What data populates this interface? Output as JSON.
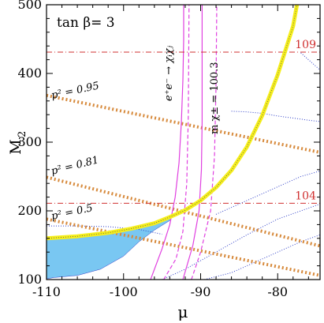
{
  "chart_data": {
    "type": "line",
    "title": "tan β= 3",
    "xlabel": "μ",
    "ylabel": "M",
    "ylabel_sub": "2",
    "xlim": [
      -110,
      -74.5
    ],
    "ylim": [
      100,
      500
    ],
    "x_ticks": [
      -110,
      -100,
      -90,
      -80
    ],
    "y_ticks": [
      100,
      200,
      300,
      400,
      500
    ],
    "x_minor_step": 2,
    "y_minor_step": 20,
    "grid": false,
    "colors": {
      "yellow": "#f5ee1c",
      "blue_fill": "#79c7f2",
      "magenta": "#e040e0",
      "orange": "#d78a3c",
      "red": "#d03030",
      "navy": "#3040c8",
      "axis": "#000000"
    },
    "hlines": [
      {
        "y": 431,
        "label": "109",
        "color": "#d03030"
      },
      {
        "y": 211,
        "label": "104",
        "color": "#d03030"
      }
    ],
    "labels": {
      "p095": "p² = 0.95",
      "p081": "p² = 0.81",
      "p05": "p² = 0.5",
      "eechi": "e⁺e⁻ → χᵢχⱼ",
      "mchi": "m χ± = 100.3"
    },
    "yellow_curve": {
      "x": [
        -110,
        -106,
        -102,
        -99,
        -96,
        -94,
        -92,
        -90,
        -88,
        -86,
        -84,
        -82,
        -80,
        -78,
        -77.5
      ],
      "y": [
        160,
        163,
        168,
        174,
        182,
        191,
        201,
        215,
        234,
        259,
        293,
        339,
        398,
        469,
        500
      ]
    },
    "blue_region": {
      "x": [
        -110,
        -106,
        -102,
        -99,
        -96,
        -94,
        -94,
        -96,
        -98,
        -100,
        -103,
        -106,
        -109,
        -110
      ],
      "y": [
        159,
        162,
        167,
        173,
        180,
        190,
        186,
        172,
        155,
        134,
        115,
        106,
        103,
        101
      ]
    },
    "orange_lines": [
      {
        "name": "p² = 0.95",
        "x": [
          -110,
          -74.5
        ],
        "y": [
          368,
          285
        ]
      },
      {
        "name": "p² = 0.81",
        "x": [
          -110,
          -74.5
        ],
        "y": [
          249,
          149
        ]
      },
      {
        "name": "p² = 0.5",
        "x": [
          -110,
          -74.5
        ],
        "y": [
          188,
          106
        ]
      }
    ],
    "magenta_solid_left": {
      "x": [
        -96.5,
        -95,
        -94,
        -93.3,
        -92.8,
        -92.5,
        -92.3,
        -92.2,
        -92.2
      ],
      "y": [
        100,
        145,
        180,
        220,
        270,
        330,
        390,
        450,
        500
      ]
    },
    "magenta_solid_right": {
      "x": [
        -92.3,
        -91,
        -90.2,
        -89.9,
        -89.8,
        -89.8,
        -89.8
      ],
      "y": [
        100,
        150,
        200,
        260,
        330,
        420,
        500
      ]
    },
    "magenta_dashed_left": {
      "x": [
        -94.8,
        -93.2,
        -92.3,
        -91.8,
        -91.6,
        -91.5
      ],
      "y": [
        100,
        130,
        170,
        240,
        340,
        500
      ]
    },
    "magenta_dashed_right": {
      "x": [
        -91.2,
        -90,
        -88.7,
        -88.2,
        -88,
        -87.9
      ],
      "y": [
        100,
        140,
        200,
        280,
        380,
        500
      ]
    },
    "navy_dotted": [
      {
        "x": [
          -110,
          -106,
          -102,
          -98,
          -95
        ],
        "y": [
          178,
          178,
          177,
          173,
          166
        ]
      },
      {
        "x": [
          -95,
          -92,
          -88,
          -84,
          -80,
          -77,
          -74.5
        ],
        "y": [
          100,
          115,
          140,
          165,
          188,
          200,
          210
        ]
      },
      {
        "x": [
          -89.5,
          -86,
          -83,
          -80,
          -77,
          -74.5
        ],
        "y": [
          100,
          110,
          125,
          140,
          155,
          165
        ]
      },
      {
        "x": [
          -88,
          -85,
          -82,
          -79,
          -77,
          -74.5
        ],
        "y": [
          195,
          210,
          225,
          240,
          250,
          258
        ]
      },
      {
        "x": [
          -86,
          -84,
          -82,
          -80,
          -78,
          -76,
          -74.5
        ],
        "y": [
          345,
          344,
          342,
          338,
          335,
          332,
          330
        ]
      },
      {
        "x": [
          -77,
          -76,
          -75,
          -74.5
        ],
        "y": [
          430,
          420,
          410,
          405
        ]
      }
    ]
  }
}
